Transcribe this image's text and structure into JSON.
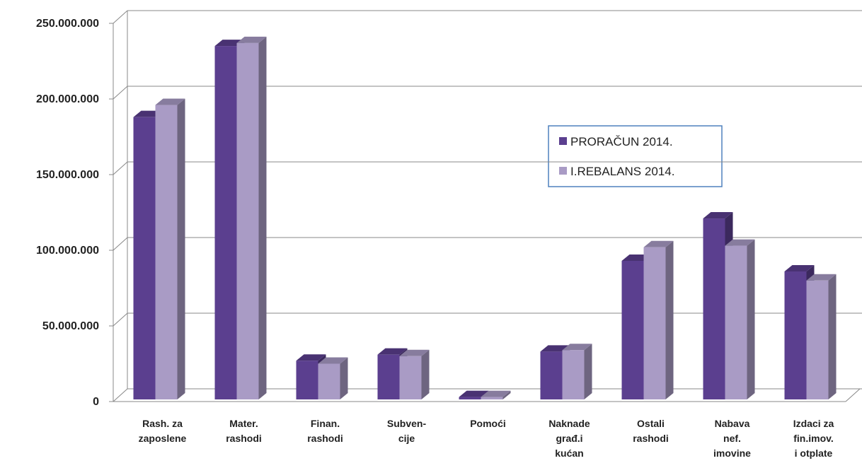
{
  "chart_data": {
    "type": "bar3d",
    "categories": [
      [
        "Rash. za",
        "zaposlene"
      ],
      [
        "Mater.",
        "rashodi"
      ],
      [
        "Finan.",
        "rashodi"
      ],
      [
        "Subven-",
        "cije"
      ],
      [
        "Pomoći"
      ],
      [
        "Naknade",
        "građ.i",
        "kućan"
      ],
      [
        "Ostali",
        "rashodi"
      ],
      [
        "Nabava",
        "nef.",
        "imovine"
      ],
      [
        "Izdaci za",
        "fin.imov.",
        "i otplate"
      ]
    ],
    "series": [
      {
        "name": "PRORAČUN 2014.",
        "color": "#5b3f8f",
        "values": [
          188000000,
          235000000,
          27000000,
          31000000,
          3000000,
          33000000,
          93000000,
          121000000,
          86000000
        ]
      },
      {
        "name": "I.REBALANS 2014.",
        "color": "#a99bc5",
        "values": [
          196000000,
          237000000,
          25000000,
          30000000,
          3000000,
          34000000,
          102000000,
          103000000,
          80000000
        ]
      }
    ],
    "ylim": [
      0,
      250000000
    ],
    "yticks": [
      0,
      {
        "value": 50000000,
        "label": "50.000.000"
      },
      {
        "value": 100000000,
        "label": "100.000.000"
      },
      {
        "value": 150000000,
        "label": "150.000.000"
      },
      {
        "value": 200000000,
        "label": "200.000.000"
      },
      {
        "value": 250000000,
        "label": "250.000.000"
      }
    ],
    "grid": true
  }
}
